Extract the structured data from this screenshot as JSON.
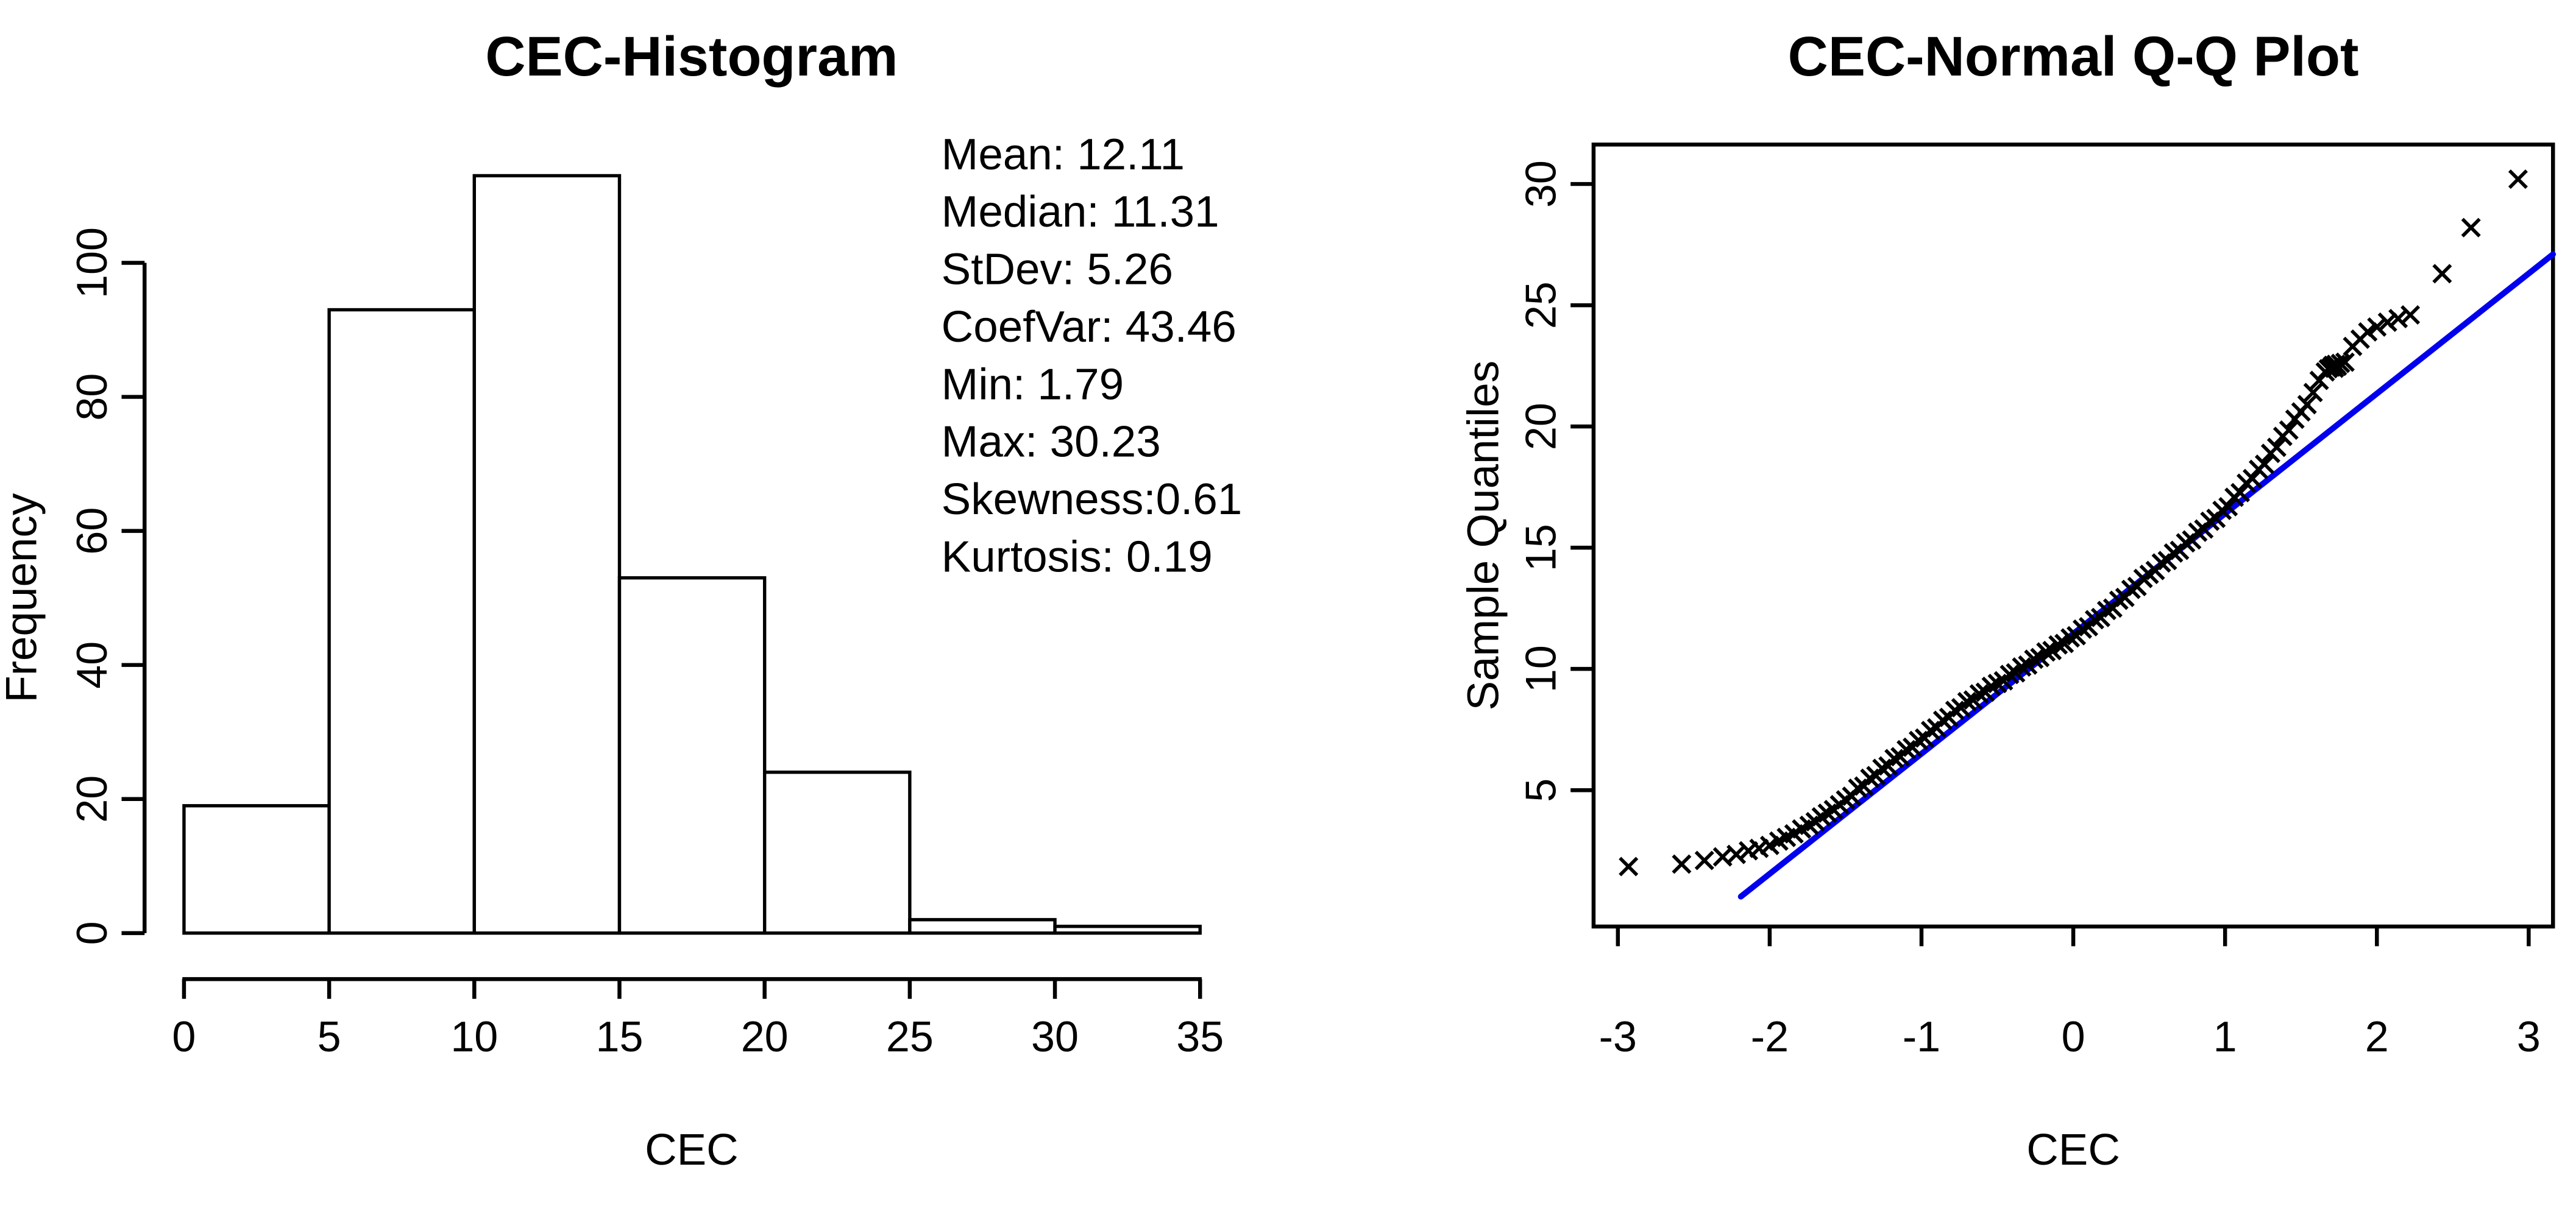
{
  "figure": {
    "background_color": "#ffffff",
    "text_color": "#000000"
  },
  "chart_data": [
    {
      "type": "bar",
      "role": "histogram",
      "title": "CEC-Histogram",
      "xlabel": "CEC",
      "ylabel": "Frequency",
      "bin_edges": [
        0,
        5,
        10,
        15,
        20,
        25,
        30,
        35
      ],
      "counts": [
        19,
        93,
        113,
        53,
        24,
        2,
        1
      ],
      "x_ticks": [
        0,
        5,
        10,
        15,
        20,
        25,
        30,
        35
      ],
      "y_ticks": [
        0,
        20,
        40,
        60,
        80,
        100
      ],
      "xlim": [
        0,
        35
      ],
      "ylim": [
        0,
        115
      ],
      "grid": false,
      "bar_fill": "#ffffff",
      "bar_stroke": "#000000",
      "annotations": [
        "Mean: 12.11",
        "Median: 11.31",
        "StDev: 5.26",
        "CoefVar: 43.46",
        "Min: 1.79",
        "Max: 30.23",
        "Skewness:0.61",
        "Kurtosis: 0.19"
      ]
    },
    {
      "type": "scatter",
      "role": "qq-plot",
      "title": "CEC-Normal Q-Q Plot",
      "xlabel": "CEC",
      "ylabel": "Sample Quantiles",
      "x_ticks": [
        -3,
        -2,
        -1,
        0,
        1,
        2,
        3
      ],
      "y_ticks": [
        5,
        10,
        15,
        20,
        25,
        30
      ],
      "xlim": [
        -3.16,
        3.16
      ],
      "ylim": [
        0.61,
        31.6
      ],
      "grid": false,
      "marker": "x",
      "marker_color": "#000000",
      "reference_line": {
        "name": "qqline",
        "color": "#0000ee",
        "x1": -2.19,
        "y1": 0.61,
        "x2": 3.16,
        "y2": 27.1
      },
      "points": [
        [
          -2.93,
          1.85
        ],
        [
          -2.58,
          1.95
        ],
        [
          -2.43,
          2.1
        ],
        [
          -2.31,
          2.25
        ],
        [
          -2.22,
          2.35
        ],
        [
          -2.14,
          2.5
        ],
        [
          -2.07,
          2.6
        ],
        [
          -2.0,
          2.72
        ],
        [
          -1.94,
          2.9
        ],
        [
          -1.89,
          3.05
        ],
        [
          -1.84,
          3.2
        ],
        [
          -1.79,
          3.4
        ],
        [
          -1.74,
          3.55
        ],
        [
          -1.7,
          3.7
        ],
        [
          -1.66,
          3.9
        ],
        [
          -1.62,
          4.05
        ],
        [
          -1.58,
          4.2
        ],
        [
          -1.54,
          4.4
        ],
        [
          -1.5,
          4.6
        ],
        [
          -1.46,
          4.75
        ],
        [
          -1.42,
          5.08
        ],
        [
          -1.38,
          5.17
        ],
        [
          -1.34,
          5.49
        ],
        [
          -1.3,
          5.6
        ],
        [
          -1.26,
          5.9
        ],
        [
          -1.22,
          6.0
        ],
        [
          -1.18,
          6.3
        ],
        [
          -1.14,
          6.38
        ],
        [
          -1.1,
          6.67
        ],
        [
          -1.06,
          6.77
        ],
        [
          -1.02,
          7.05
        ],
        [
          -0.98,
          7.15
        ],
        [
          -0.94,
          7.46
        ],
        [
          -0.9,
          7.57
        ],
        [
          -0.86,
          7.88
        ],
        [
          -0.82,
          8.0
        ],
        [
          -0.78,
          8.29
        ],
        [
          -0.74,
          8.4
        ],
        [
          -0.7,
          8.65
        ],
        [
          -0.66,
          8.72
        ],
        [
          -0.62,
          8.97
        ],
        [
          -0.58,
          9.04
        ],
        [
          -0.54,
          9.28
        ],
        [
          -0.5,
          9.4
        ],
        [
          -0.46,
          9.51
        ],
        [
          -0.42,
          9.77
        ],
        [
          -0.38,
          9.84
        ],
        [
          -0.34,
          10.08
        ],
        [
          -0.3,
          10.16
        ],
        [
          -0.26,
          10.4
        ],
        [
          -0.22,
          10.47
        ],
        [
          -0.18,
          10.7
        ],
        [
          -0.14,
          10.76
        ],
        [
          -0.1,
          10.99
        ],
        [
          -0.06,
          11.05
        ],
        [
          -0.02,
          11.28
        ],
        [
          0.02,
          11.37
        ],
        [
          0.06,
          11.64
        ],
        [
          0.1,
          11.74
        ],
        [
          0.14,
          12.03
        ],
        [
          0.18,
          12.12
        ],
        [
          0.22,
          12.41
        ],
        [
          0.26,
          12.51
        ],
        [
          0.3,
          12.83
        ],
        [
          0.34,
          12.95
        ],
        [
          0.38,
          13.28
        ],
        [
          0.42,
          13.4
        ],
        [
          0.46,
          13.73
        ],
        [
          0.5,
          13.9
        ],
        [
          0.54,
          14.06
        ],
        [
          0.58,
          14.37
        ],
        [
          0.62,
          14.47
        ],
        [
          0.66,
          14.78
        ],
        [
          0.7,
          14.89
        ],
        [
          0.74,
          15.2
        ],
        [
          0.78,
          15.32
        ],
        [
          0.82,
          15.64
        ],
        [
          0.86,
          15.77
        ],
        [
          0.9,
          16.09
        ],
        [
          0.94,
          16.21
        ],
        [
          0.98,
          16.54
        ],
        [
          1.02,
          16.69
        ],
        [
          1.06,
          17.08
        ],
        [
          1.1,
          17.27
        ],
        [
          1.14,
          17.66
        ],
        [
          1.18,
          17.85
        ],
        [
          1.22,
          18.23
        ],
        [
          1.26,
          18.44
        ],
        [
          1.3,
          18.89
        ],
        [
          1.34,
          19.14
        ],
        [
          1.38,
          19.59
        ],
        [
          1.42,
          19.85
        ],
        [
          1.46,
          20.3
        ],
        [
          1.5,
          20.6
        ],
        [
          1.54,
          20.9
        ],
        [
          1.58,
          21.4
        ],
        [
          1.62,
          21.9
        ],
        [
          1.66,
          22.25
        ],
        [
          1.68,
          22.38
        ],
        [
          1.7,
          22.45
        ],
        [
          1.71,
          22.52
        ],
        [
          1.72,
          22.4
        ],
        [
          1.73,
          22.56
        ],
        [
          1.74,
          22.48
        ],
        [
          1.76,
          22.6
        ],
        [
          1.79,
          22.65
        ],
        [
          1.84,
          23.3
        ],
        [
          1.89,
          23.6
        ],
        [
          1.94,
          23.9
        ],
        [
          2.0,
          24.1
        ],
        [
          2.07,
          24.3
        ],
        [
          2.14,
          24.45
        ],
        [
          2.22,
          24.6
        ],
        [
          2.43,
          26.3
        ],
        [
          2.62,
          28.2
        ],
        [
          2.93,
          30.2
        ]
      ]
    }
  ]
}
